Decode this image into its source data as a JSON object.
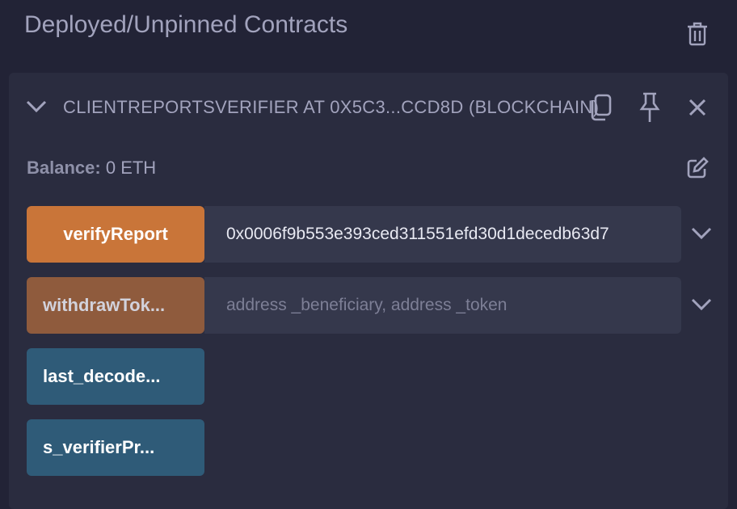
{
  "panel": {
    "title": "Deployed/Unpinned Contracts"
  },
  "instance": {
    "label": "CLIENTREPORTSVERIFIER AT 0X5C3...CCD8D (BLOCKCHAIN)",
    "balance_label": "Balance:",
    "balance_value": "0 ETH",
    "functions": [
      {
        "name": "verifyReport",
        "input_value": "0x0006f9b553e393ced311551efd30d1decedb63d7",
        "color": "#c97539"
      },
      {
        "name": "withdrawTok...",
        "input_placeholder": "address _beneficiary, address _token",
        "color": "#8f5b3d"
      },
      {
        "name": "last_decode...",
        "color": "#2f5b78"
      },
      {
        "name": "s_verifierPr...",
        "color": "#2f5b78"
      }
    ]
  }
}
